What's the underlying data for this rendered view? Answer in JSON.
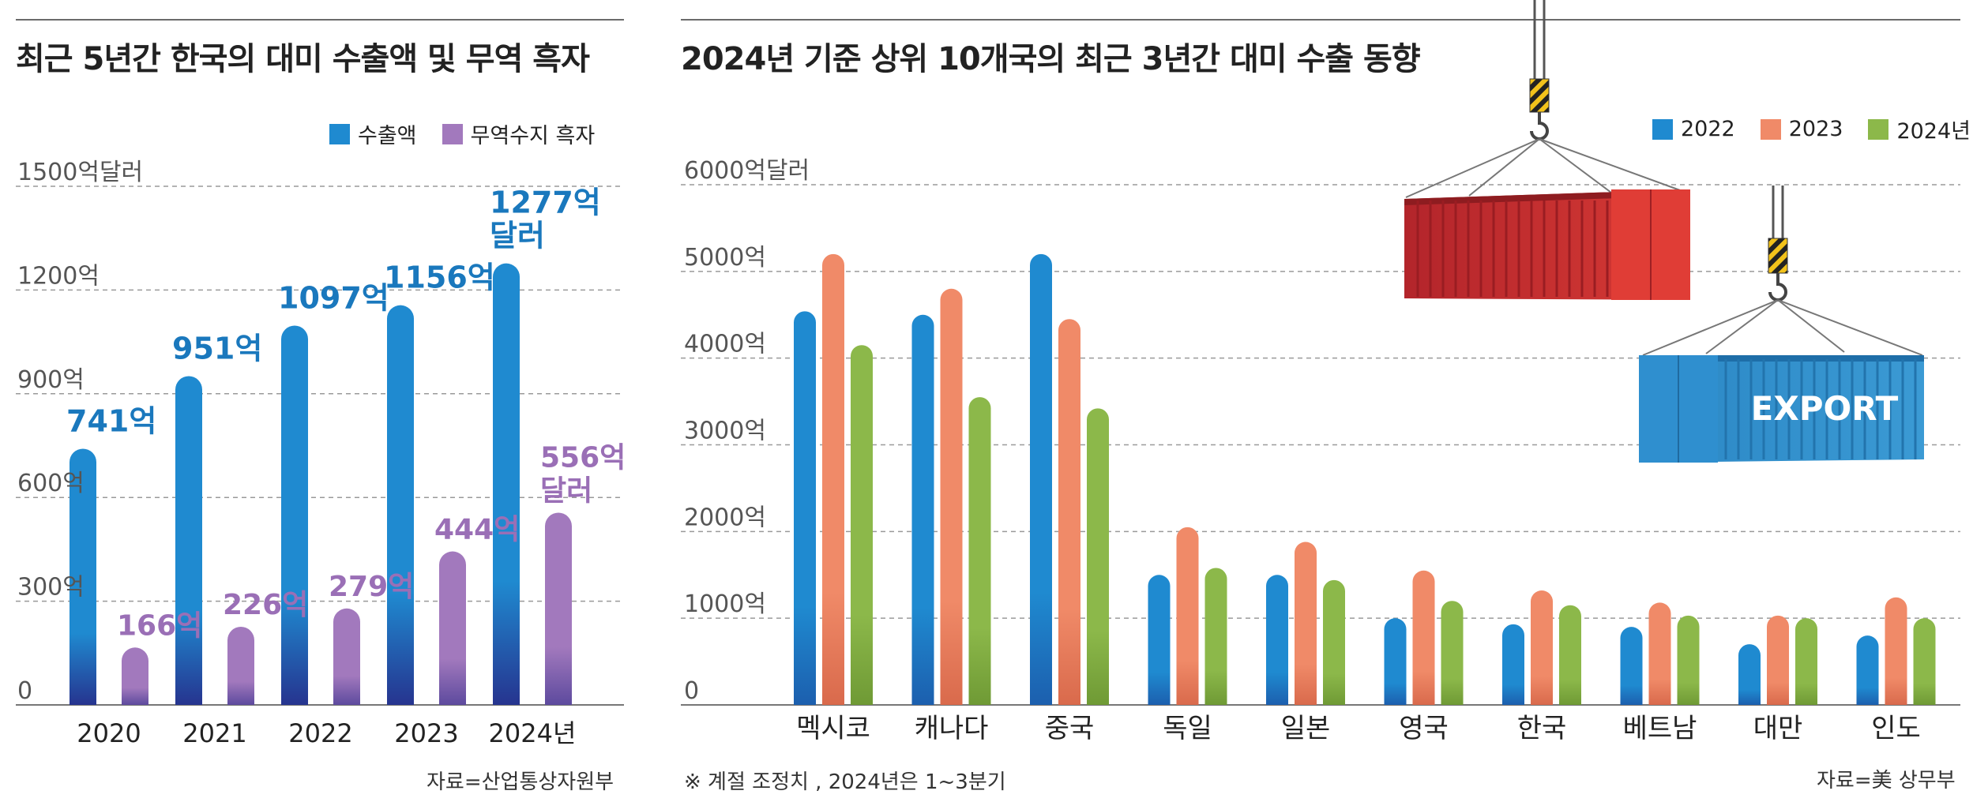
{
  "left": {
    "title": "최근 5년간 한국의 대미 수출액 및 무역 흑자",
    "source": "자료=산업통상자원부",
    "legend": [
      {
        "label": "수출액",
        "color": "#1f8ad0"
      },
      {
        "label": "무역수지 흑자",
        "color": "#a279bd"
      }
    ]
  },
  "right": {
    "title": "2024년 기준 상위 10개국의 최근 3년간 대미 수출 동향",
    "note": "※ 계절 조정치 , 2024년은 1~3분기",
    "source": "자료=美 상무부",
    "legend": [
      {
        "label": "2022",
        "color": "#1f8ad0"
      },
      {
        "label": "2023",
        "color": "#f08a68"
      },
      {
        "label": "2024년",
        "color": "#8cb84a"
      }
    ],
    "illustration": {
      "container_text": "EXPORT",
      "icons": [
        "crane-hook-icon",
        "red-shipping-container-icon",
        "blue-shipping-container-icon"
      ]
    }
  },
  "chart_data": [
    {
      "type": "bar",
      "title": "최근 5년간 한국의 대미 수출액 및 무역 흑자",
      "categories": [
        "2020",
        "2021",
        "2022",
        "2023",
        "2024년"
      ],
      "series": [
        {
          "name": "수출액",
          "values": [
            741,
            951,
            1097,
            1156,
            1277
          ],
          "labels": [
            "741억",
            "951억",
            "1097억",
            "1156억",
            "1277억 달러"
          ],
          "color": "#1f8ad0"
        },
        {
          "name": "무역수지 흑자",
          "values": [
            166,
            226,
            279,
            444,
            556
          ],
          "labels": [
            "166억",
            "226억",
            "279억",
            "444억",
            "556억 달러"
          ],
          "color": "#a279bd"
        }
      ],
      "yticks": [
        0,
        300,
        600,
        900,
        1200,
        1500
      ],
      "ytick_labels": [
        "0",
        "300억",
        "600억",
        "900억",
        "1200억",
        "1500억달러"
      ],
      "ylim": [
        0,
        1500
      ],
      "grid": true,
      "legend": "top-right"
    },
    {
      "type": "bar",
      "title": "2024년 기준 상위 10개국의 최근 3년간 대미 수출 동향",
      "categories": [
        "멕시코",
        "캐나다",
        "중국",
        "독일",
        "일본",
        "영국",
        "한국",
        "베트남",
        "대만",
        "인도"
      ],
      "series": [
        {
          "name": "2022",
          "values": [
            4540,
            4500,
            5200,
            1500,
            1500,
            1000,
            930,
            900,
            700,
            800
          ],
          "color": "#1f8ad0"
        },
        {
          "name": "2023",
          "values": [
            5200,
            4800,
            4450,
            2050,
            1880,
            1550,
            1320,
            1180,
            1030,
            1240
          ],
          "color": "#f08a68"
        },
        {
          "name": "2024년",
          "values": [
            4150,
            3550,
            3420,
            1580,
            1440,
            1200,
            1150,
            1030,
            1000,
            1000
          ],
          "color": "#8cb84a"
        }
      ],
      "yticks": [
        0,
        1000,
        2000,
        3000,
        4000,
        5000,
        6000
      ],
      "ytick_labels": [
        "0",
        "1000억",
        "2000억",
        "3000억",
        "4000억",
        "5000억",
        "6000억달러"
      ],
      "ylim": [
        0,
        6000
      ],
      "grid": true,
      "legend": "top-right"
    }
  ]
}
